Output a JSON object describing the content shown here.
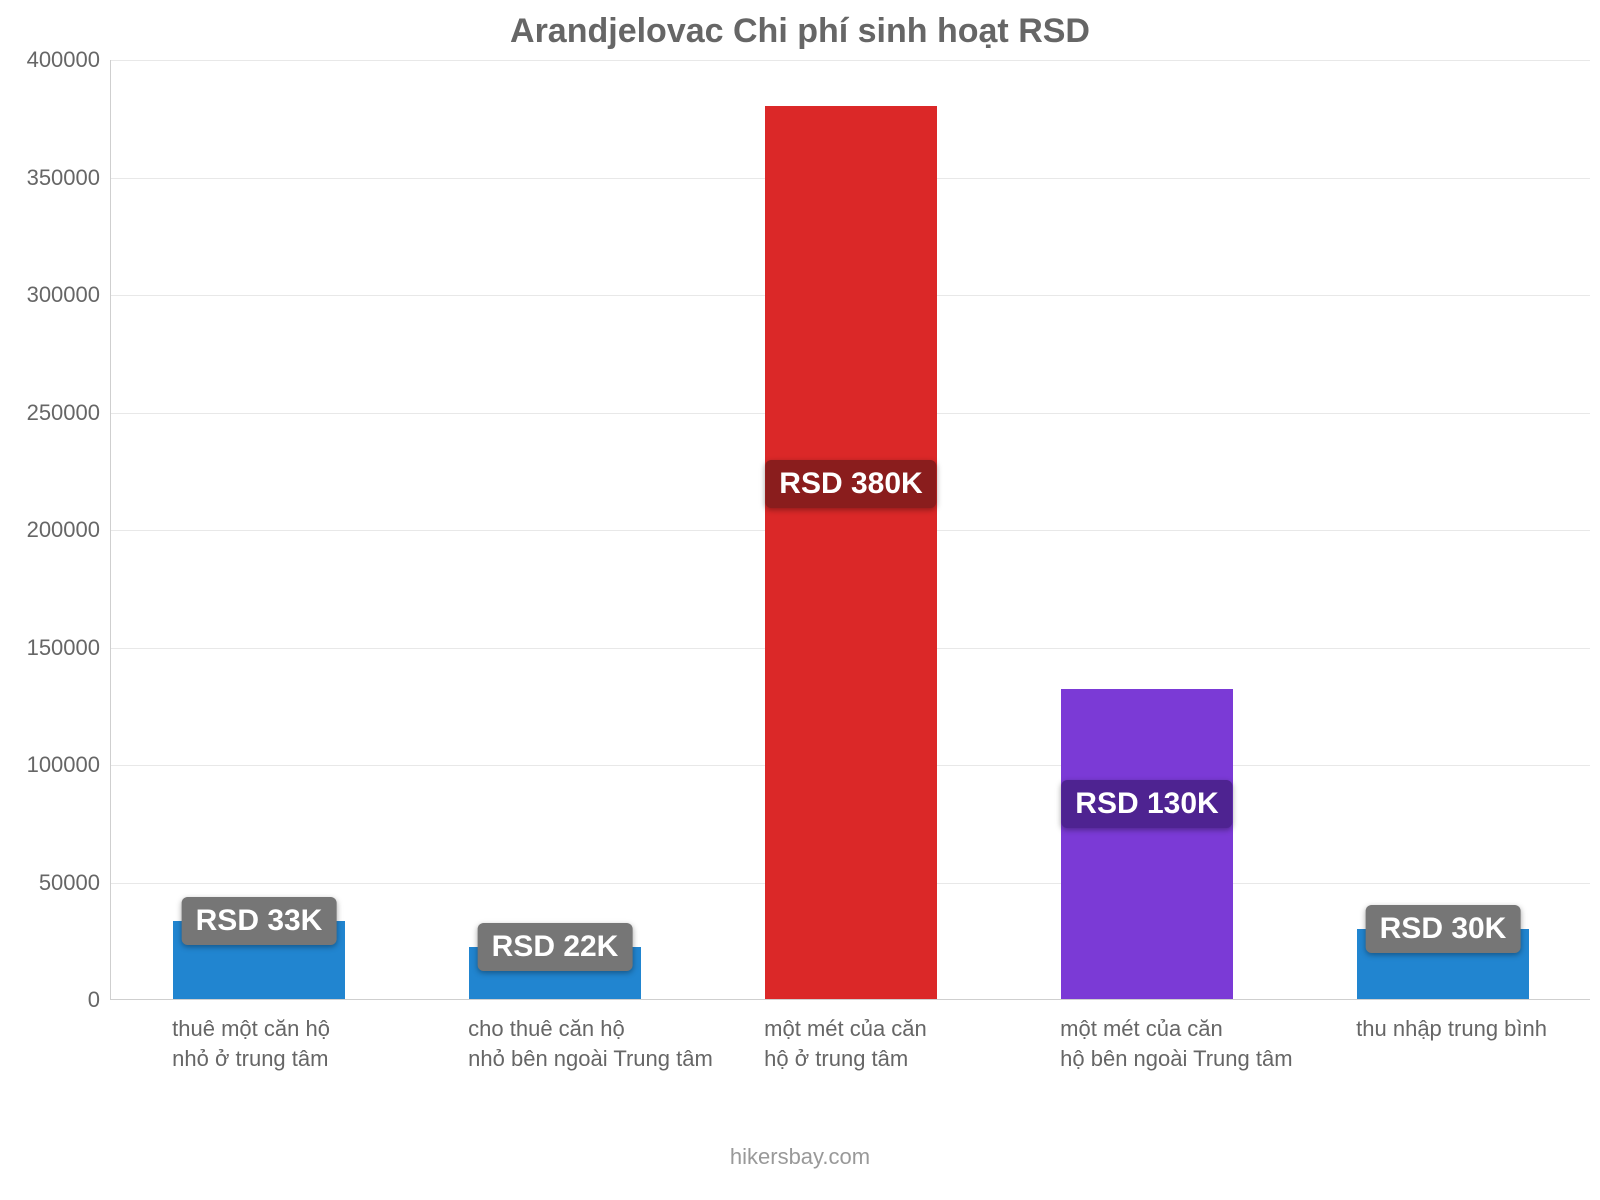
{
  "chart": {
    "type": "bar",
    "title": "Arandjelovac Chi phí sinh hoạt RSD",
    "title_color": "#666666",
    "title_fontsize": 34,
    "background_color": "#ffffff",
    "grid_color": "#e8e8e8",
    "axis_color": "#cfcfcf",
    "tick_color": "#666666",
    "tick_fontsize": 22,
    "x_label_color": "#666666",
    "x_label_fontsize": 22,
    "bar_label_fontsize": 30,
    "bar_label_text_color": "#ffffff",
    "bar_width_ratio": 0.58,
    "y": {
      "min": 0,
      "max": 400000,
      "step": 50000,
      "ticks": [
        "0",
        "50000",
        "100000",
        "150000",
        "200000",
        "250000",
        "300000",
        "350000",
        "400000"
      ]
    },
    "bars": [
      {
        "category_lines": [
          "thuê một căn hộ",
          "nhỏ ở trung tâm"
        ],
        "value": 33000,
        "label": "RSD 33K",
        "color": "#2185d0",
        "label_bg": "#767676"
      },
      {
        "category_lines": [
          "cho thuê căn hộ",
          "nhỏ bên ngoài Trung tâm"
        ],
        "value": 22000,
        "label": "RSD 22K",
        "color": "#2185d0",
        "label_bg": "#767676"
      },
      {
        "category_lines": [
          "một mét của căn",
          "hộ ở trung tâm"
        ],
        "value": 380000,
        "label": "RSD 380K",
        "color": "#db2828",
        "label_bg": "#8a1d1d"
      },
      {
        "category_lines": [
          "một mét của căn",
          "hộ bên ngoài Trung tâm"
        ],
        "value": 132000,
        "label": "RSD 130K",
        "color": "#7b3ad6",
        "label_bg": "#4e2391"
      },
      {
        "category_lines": [
          "thu nhập trung bình"
        ],
        "value": 30000,
        "label": "RSD 30K",
        "color": "#2185d0",
        "label_bg": "#767676"
      }
    ],
    "footer": "hikersbay.com",
    "footer_color": "#999999",
    "footer_fontsize": 22
  }
}
